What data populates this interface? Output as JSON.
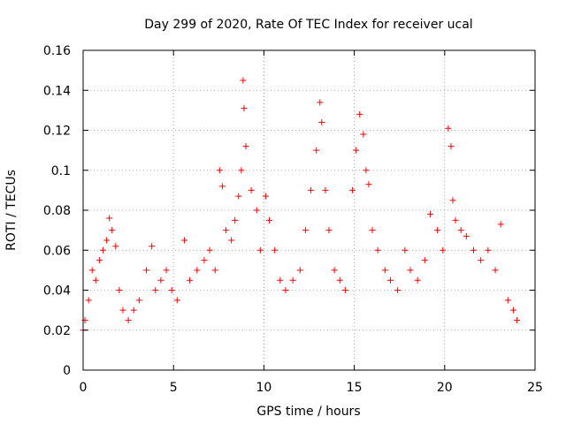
{
  "chart_data": {
    "type": "scatter",
    "title": "Day 299 of 2020, Rate Of TEC Index for receiver ucal",
    "xlabel": "GPS time / hours",
    "ylabel": "ROTI / TECUs",
    "xlim": [
      0,
      25
    ],
    "ylim": [
      0,
      0.16
    ],
    "x_ticks": [
      "0",
      "5",
      "10",
      "15",
      "20",
      "25"
    ],
    "y_ticks": [
      "0",
      "0.02",
      "0.04",
      "0.06",
      "0.08",
      "0.1",
      "0.12",
      "0.14",
      "0.16"
    ],
    "grid": true,
    "legend": "none",
    "marker": "+",
    "color": "#ff0000",
    "series": [
      {
        "x": [
          0.0,
          0.1,
          0.3,
          0.5,
          0.7,
          0.9,
          1.1,
          1.3,
          1.45,
          1.6,
          1.8,
          2.0,
          2.2,
          2.5,
          2.8,
          3.1,
          3.5,
          3.8,
          4.0,
          4.3,
          4.6,
          4.9,
          5.2,
          5.6,
          5.9,
          6.3,
          6.7,
          7.0,
          7.3,
          7.55,
          7.7,
          7.9,
          8.2,
          8.4,
          8.6,
          8.75,
          8.85,
          8.9,
          9.0,
          9.3,
          9.6,
          9.8,
          10.1,
          10.3,
          10.6,
          10.9,
          11.2,
          11.6,
          12.0,
          12.3,
          12.6,
          12.9,
          13.1,
          13.2,
          13.4,
          13.6,
          13.9,
          14.2,
          14.5,
          14.9,
          15.1,
          15.3,
          15.5,
          15.65,
          15.8,
          16.0,
          16.3,
          16.7,
          17.0,
          17.4,
          17.8,
          18.1,
          18.5,
          18.9,
          19.2,
          19.6,
          19.9,
          20.2,
          20.35,
          20.45,
          20.6,
          20.9,
          21.2,
          21.6,
          22.0,
          22.4,
          22.8,
          23.1,
          23.5,
          23.8,
          24.0
        ],
        "y": [
          0.02,
          0.025,
          0.035,
          0.05,
          0.045,
          0.055,
          0.06,
          0.065,
          0.076,
          0.07,
          0.062,
          0.04,
          0.03,
          0.025,
          0.03,
          0.035,
          0.05,
          0.062,
          0.04,
          0.045,
          0.05,
          0.04,
          0.035,
          0.065,
          0.045,
          0.05,
          0.055,
          0.06,
          0.05,
          0.1,
          0.092,
          0.07,
          0.065,
          0.075,
          0.087,
          0.1,
          0.145,
          0.131,
          0.112,
          0.09,
          0.08,
          0.06,
          0.087,
          0.075,
          0.06,
          0.045,
          0.04,
          0.045,
          0.05,
          0.07,
          0.09,
          0.11,
          0.134,
          0.124,
          0.09,
          0.07,
          0.05,
          0.045,
          0.04,
          0.09,
          0.11,
          0.128,
          0.118,
          0.1,
          0.093,
          0.07,
          0.06,
          0.05,
          0.045,
          0.04,
          0.06,
          0.05,
          0.045,
          0.055,
          0.078,
          0.07,
          0.06,
          0.121,
          0.112,
          0.085,
          0.075,
          0.07,
          0.067,
          0.06,
          0.055,
          0.06,
          0.05,
          0.073,
          0.035,
          0.03,
          0.025
        ]
      }
    ]
  }
}
